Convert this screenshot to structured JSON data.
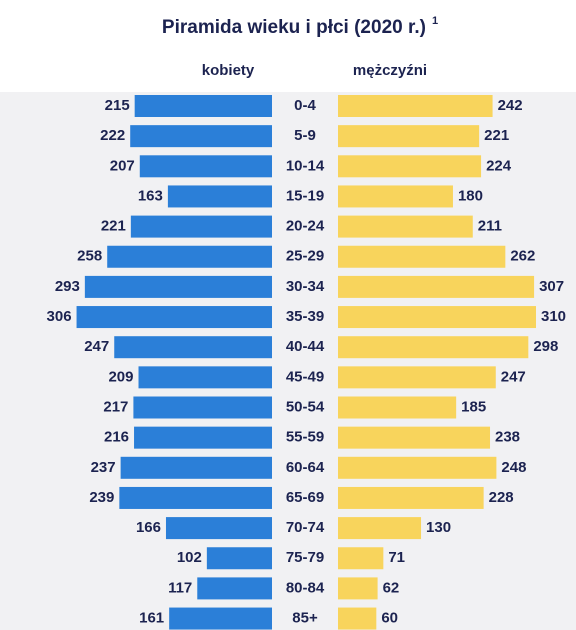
{
  "chart_data": {
    "type": "pyramid",
    "title": "Piramida wieku i płci (2020 r.)",
    "title_superscript": "1",
    "categories": [
      "0-4",
      "5-9",
      "10-14",
      "15-19",
      "20-24",
      "25-29",
      "30-34",
      "35-39",
      "40-44",
      "45-49",
      "50-54",
      "55-59",
      "60-64",
      "65-69",
      "70-74",
      "75-79",
      "80-84",
      "85+"
    ],
    "series": [
      {
        "name": "kobiety",
        "color": "#2b7fd8",
        "values": [
          215,
          222,
          207,
          163,
          221,
          258,
          293,
          306,
          247,
          209,
          217,
          216,
          237,
          239,
          166,
          102,
          117,
          161
        ]
      },
      {
        "name": "mężczyźni",
        "color": "#f8d45c",
        "values": [
          242,
          221,
          224,
          180,
          211,
          262,
          307,
          310,
          298,
          247,
          185,
          238,
          248,
          228,
          130,
          71,
          62,
          60
        ]
      }
    ]
  }
}
